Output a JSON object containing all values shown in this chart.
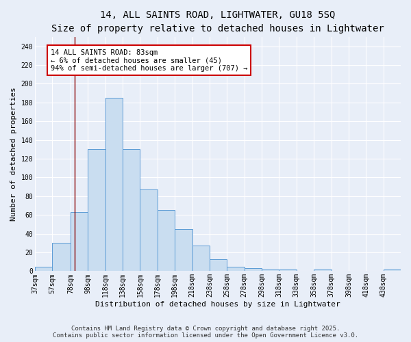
{
  "title_line1": "14, ALL SAINTS ROAD, LIGHTWATER, GU18 5SQ",
  "title_line2": "Size of property relative to detached houses in Lightwater",
  "xlabel": "Distribution of detached houses by size in Lightwater",
  "ylabel": "Number of detached properties",
  "bin_labels": [
    "37sqm",
    "57sqm",
    "78sqm",
    "98sqm",
    "118sqm",
    "138sqm",
    "158sqm",
    "178sqm",
    "198sqm",
    "218sqm",
    "238sqm",
    "258sqm",
    "278sqm",
    "298sqm",
    "318sqm",
    "338sqm",
    "358sqm",
    "378sqm",
    "398sqm",
    "418sqm",
    "438sqm"
  ],
  "bin_left_edges": [
    37,
    57,
    78,
    98,
    118,
    138,
    158,
    178,
    198,
    218,
    238,
    258,
    278,
    298,
    318,
    338,
    358,
    378,
    398,
    418,
    438
  ],
  "bar_widths": [
    20,
    21,
    20,
    20,
    20,
    20,
    20,
    20,
    20,
    20,
    20,
    20,
    20,
    20,
    20,
    20,
    20,
    20,
    20,
    20,
    20
  ],
  "bar_heights": [
    5,
    30,
    63,
    130,
    185,
    130,
    87,
    65,
    45,
    27,
    13,
    5,
    3,
    2,
    2,
    0,
    2,
    0,
    0,
    0,
    2
  ],
  "bar_color": "#c9ddf0",
  "bar_edge_color": "#5b9bd5",
  "bg_color": "#e8eef8",
  "grid_color": "#ffffff",
  "vline_x": 83,
  "vline_color": "#8b0000",
  "annotation_text": "14 ALL SAINTS ROAD: 83sqm\n← 6% of detached houses are smaller (45)\n94% of semi-detached houses are larger (707) →",
  "annotation_box_color": "#ffffff",
  "annotation_box_edge": "#cc0000",
  "ylim": [
    0,
    250
  ],
  "yticks": [
    0,
    20,
    40,
    60,
    80,
    100,
    120,
    140,
    160,
    180,
    200,
    220,
    240
  ],
  "footer_line1": "Contains HM Land Registry data © Crown copyright and database right 2025.",
  "footer_line2": "Contains public sector information licensed under the Open Government Licence v3.0.",
  "title_fontsize": 10,
  "subtitle_fontsize": 9,
  "axis_label_fontsize": 8,
  "tick_fontsize": 7,
  "annotation_fontsize": 7.5,
  "footer_fontsize": 6.5
}
